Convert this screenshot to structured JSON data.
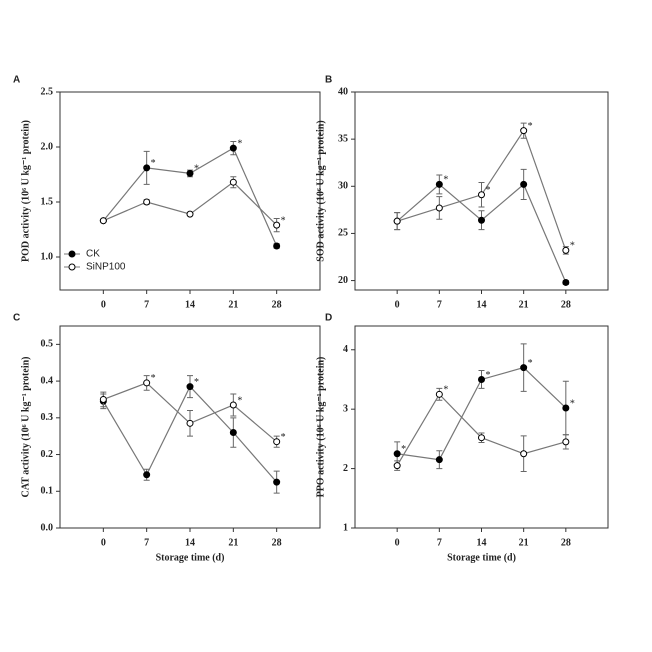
{
  "chart_data": [
    {
      "type": "line",
      "label": "A",
      "ylabel": "POD activity (10⁶ U kg⁻¹ protein)",
      "x": [
        0,
        7,
        14,
        21,
        28
      ],
      "xticks": [
        0,
        7,
        14,
        21,
        28
      ],
      "xlim": [
        -7,
        35
      ],
      "ylim": [
        0.7,
        2.5
      ],
      "yticks": [
        {
          "value": 1,
          "label": "1.0"
        },
        1.5,
        {
          "value": 2,
          "label": "2.0"
        },
        2.5
      ],
      "legend": "lower left",
      "series": [
        {
          "name": "CK",
          "marker": "filled",
          "color": "#000000",
          "values": [
            1.33,
            1.81,
            1.76,
            1.99,
            1.1
          ],
          "errors": [
            0.01,
            0.15,
            0.03,
            0.06,
            0.02
          ],
          "sig": [
            null,
            "*",
            "*",
            "*",
            null
          ]
        },
        {
          "name": "SiNP100",
          "marker": "open",
          "color": "#000000",
          "values": [
            1.33,
            1.5,
            1.39,
            1.68,
            1.29
          ],
          "errors": [
            0.01,
            0.02,
            0.01,
            0.05,
            0.06
          ],
          "sig": [
            null,
            null,
            null,
            null,
            "*"
          ]
        }
      ]
    },
    {
      "type": "line",
      "label": "B",
      "ylabel": "SOD activity (10⁶ U kg⁻¹ protein)",
      "x": [
        0,
        7,
        14,
        21,
        28
      ],
      "xticks": [
        0,
        7,
        14,
        21,
        28
      ],
      "xlim": [
        -7,
        35
      ],
      "ylim": [
        19,
        40
      ],
      "yticks": [
        20,
        25,
        30,
        35,
        40
      ],
      "series": [
        {
          "marker": "filled",
          "color": "#000000",
          "values": [
            26.3,
            30.2,
            26.4,
            30.2,
            19.8
          ],
          "errors": [
            0.9,
            1,
            1,
            1.6,
            0.2
          ],
          "sig": [
            null,
            "*",
            null,
            null,
            null
          ]
        },
        {
          "marker": "open",
          "color": "#000000",
          "values": [
            26.3,
            27.7,
            29.1,
            35.9,
            23.2
          ],
          "errors": [
            0.9,
            1.2,
            1.3,
            0.8,
            0.4
          ],
          "sig": [
            null,
            null,
            "*",
            "*",
            "*"
          ]
        }
      ]
    },
    {
      "type": "line",
      "label": "C",
      "ylabel": "CAT activity (10⁶ U kg⁻¹ protein)",
      "xlabel": "Storage time (d)",
      "x": [
        0,
        7,
        14,
        21,
        28
      ],
      "xticks": [
        0,
        7,
        14,
        21,
        28
      ],
      "xlim": [
        -7,
        35
      ],
      "ylim": [
        0,
        0.55
      ],
      "yticks": [
        {
          "value": 0,
          "label": "0.0"
        },
        0.1,
        0.2,
        0.3,
        0.4,
        0.5
      ],
      "series": [
        {
          "marker": "filled",
          "color": "#000000",
          "values": [
            0.345,
            0.145,
            0.385,
            0.26,
            0.125
          ],
          "errors": [
            0.02,
            0.015,
            0.03,
            0.04,
            0.03
          ],
          "sig": [
            null,
            null,
            "*",
            null,
            null
          ]
        },
        {
          "marker": "open",
          "color": "#000000",
          "values": [
            0.35,
            0.395,
            0.285,
            0.335,
            0.235
          ],
          "errors": [
            0.02,
            0.02,
            0.035,
            0.03,
            0.015
          ],
          "sig": [
            null,
            "*",
            null,
            "*",
            "*"
          ]
        }
      ]
    },
    {
      "type": "line",
      "label": "D",
      "ylabel": "PPO activity (10⁶ U kg⁻¹ protein)",
      "xlabel": "Storage time (d)",
      "x": [
        0,
        7,
        14,
        21,
        28
      ],
      "xticks": [
        0,
        7,
        14,
        21,
        28
      ],
      "xlim": [
        -7,
        35
      ],
      "ylim": [
        1,
        4.4
      ],
      "yticks": [
        1,
        2,
        3,
        4
      ],
      "series": [
        {
          "marker": "filled",
          "color": "#000000",
          "values": [
            2.25,
            2.15,
            3.5,
            3.7,
            3.02
          ],
          "errors": [
            0.2,
            0.15,
            0.15,
            0.4,
            0.45
          ],
          "sig": [
            "*",
            null,
            "*",
            "*",
            "*"
          ]
        },
        {
          "marker": "open",
          "color": "#000000",
          "values": [
            2.05,
            3.25,
            2.52,
            2.25,
            2.45
          ],
          "errors": [
            0.08,
            0.1,
            0.08,
            0.3,
            0.12
          ],
          "sig": [
            null,
            "*",
            null,
            null,
            null
          ]
        }
      ]
    }
  ]
}
